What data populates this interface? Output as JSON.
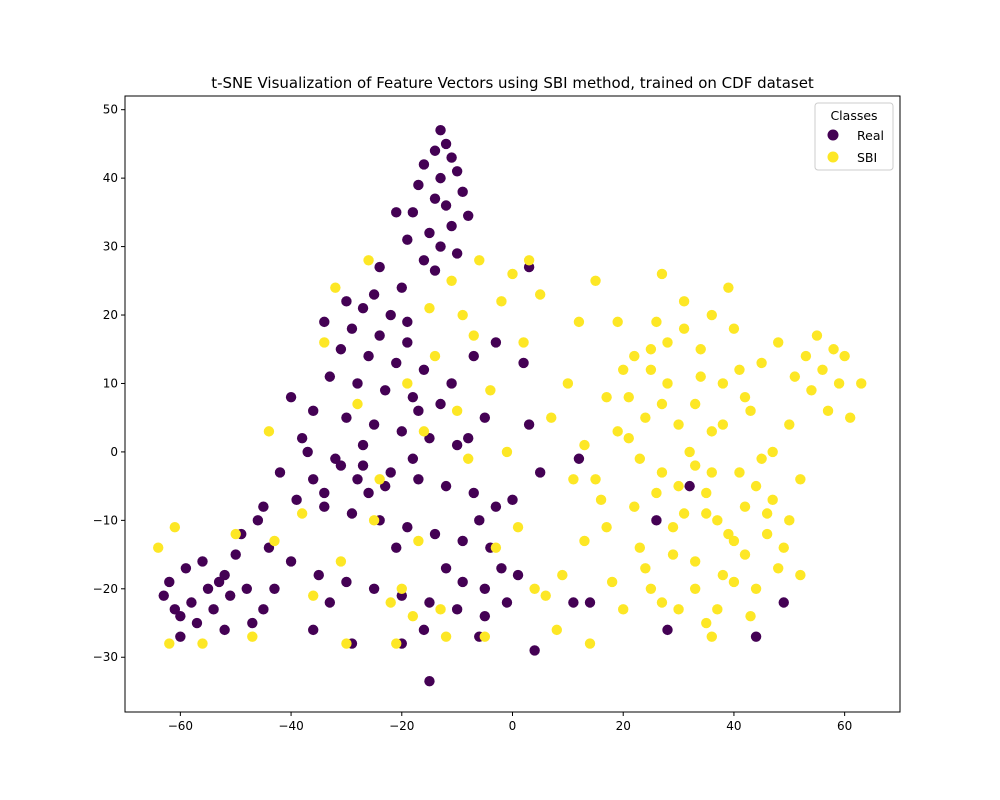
{
  "chart_data": {
    "type": "scatter",
    "title": "t-SNE Visualization of Feature Vectors using SBI method, trained on CDF dataset",
    "xlabel": "",
    "ylabel": "",
    "xlim": [
      -70,
      70
    ],
    "ylim": [
      -38,
      52
    ],
    "xticks": [
      -60,
      -40,
      -20,
      0,
      20,
      40,
      60
    ],
    "yticks": [
      -30,
      -20,
      -10,
      0,
      10,
      20,
      30,
      40,
      50
    ],
    "grid": false,
    "legend": {
      "title": "Classes",
      "placement": "top-right"
    },
    "series": [
      {
        "name": "Real",
        "color": "#440154",
        "points": [
          [
            -15,
            -33.5
          ],
          [
            -13,
            47
          ],
          [
            -12,
            45
          ],
          [
            -14,
            44
          ],
          [
            -11,
            43
          ],
          [
            -16,
            42
          ],
          [
            -10,
            41
          ],
          [
            -13,
            40
          ],
          [
            -17,
            39
          ],
          [
            -9,
            38
          ],
          [
            -14,
            37
          ],
          [
            -12,
            36
          ],
          [
            -18,
            35
          ],
          [
            -8,
            34.5
          ],
          [
            -11,
            33
          ],
          [
            -15,
            32
          ],
          [
            -19,
            31
          ],
          [
            -13,
            30
          ],
          [
            -10,
            29
          ],
          [
            -16,
            28
          ],
          [
            -21,
            35
          ],
          [
            -14,
            26.5
          ],
          [
            -20,
            24
          ],
          [
            -25,
            23
          ],
          [
            -30,
            22
          ],
          [
            -27,
            21
          ],
          [
            -22,
            20
          ],
          [
            -34,
            19
          ],
          [
            -29,
            18
          ],
          [
            -24,
            17
          ],
          [
            -19,
            16
          ],
          [
            -31,
            15
          ],
          [
            -26,
            14
          ],
          [
            -21,
            13
          ],
          [
            -16,
            12
          ],
          [
            -33,
            11
          ],
          [
            -28,
            10
          ],
          [
            -23,
            9
          ],
          [
            -18,
            8
          ],
          [
            -13,
            7
          ],
          [
            -36,
            6
          ],
          [
            -30,
            5
          ],
          [
            -25,
            4
          ],
          [
            -20,
            3
          ],
          [
            -15,
            2
          ],
          [
            -10,
            1
          ],
          [
            -37,
            0
          ],
          [
            -32,
            -1
          ],
          [
            -27,
            -2
          ],
          [
            -22,
            -3
          ],
          [
            -17,
            -4
          ],
          [
            -12,
            -5
          ],
          [
            -7,
            -6
          ],
          [
            -42,
            -3
          ],
          [
            -39,
            -7
          ],
          [
            -34,
            -8
          ],
          [
            -29,
            -9
          ],
          [
            -24,
            -10
          ],
          [
            -19,
            -11
          ],
          [
            -14,
            -12
          ],
          [
            -9,
            -13
          ],
          [
            -4,
            -14
          ],
          [
            -46,
            -10
          ],
          [
            -44,
            -14
          ],
          [
            -40,
            -16
          ],
          [
            -35,
            -18
          ],
          [
            -30,
            -19
          ],
          [
            -25,
            -20
          ],
          [
            -20,
            -21
          ],
          [
            -15,
            -22
          ],
          [
            -10,
            -23
          ],
          [
            -5,
            -24
          ],
          [
            -50,
            -15
          ],
          [
            -52,
            -18
          ],
          [
            -55,
            -20
          ],
          [
            -58,
            -22
          ],
          [
            -60,
            -24
          ],
          [
            -62,
            -19
          ],
          [
            -63,
            -21
          ],
          [
            -59,
            -17
          ],
          [
            -56,
            -16
          ],
          [
            -53,
            -19
          ],
          [
            -61,
            -23
          ],
          [
            -57,
            -25
          ],
          [
            -54,
            -23
          ],
          [
            -51,
            -21
          ],
          [
            -48,
            -20
          ],
          [
            -45,
            -23
          ],
          [
            -47,
            -25
          ],
          [
            -60,
            -27
          ],
          [
            -52,
            -26
          ],
          [
            -40,
            8
          ],
          [
            -38,
            2
          ],
          [
            -36,
            -4
          ],
          [
            -34,
            -6
          ],
          [
            -26,
            -6
          ],
          [
            -23,
            -5
          ],
          [
            -28,
            -4
          ],
          [
            -31,
            -2
          ],
          [
            -18,
            -1
          ],
          [
            -8,
            2
          ],
          [
            -5,
            5
          ],
          [
            -3,
            -8
          ],
          [
            0,
            -7
          ],
          [
            2,
            13
          ],
          [
            3,
            4
          ],
          [
            5,
            -3
          ],
          [
            11,
            -22
          ],
          [
            12,
            -1
          ],
          [
            3,
            27
          ],
          [
            -3,
            16
          ],
          [
            -2,
            -17
          ],
          [
            1,
            -18
          ],
          [
            14,
            -22
          ],
          [
            -6,
            -10
          ],
          [
            32,
            -5
          ],
          [
            26,
            -10
          ],
          [
            28,
            -26
          ],
          [
            44,
            -27
          ],
          [
            49,
            -22
          ],
          [
            -17,
            6
          ],
          [
            -11,
            10
          ],
          [
            -7,
            14
          ],
          [
            -12,
            -17
          ],
          [
            -16,
            -26
          ],
          [
            -6,
            -27
          ],
          [
            -20,
            -28
          ],
          [
            -29,
            -28
          ],
          [
            -33,
            -22
          ],
          [
            -36,
            -26
          ],
          [
            -43,
            -20
          ],
          [
            -45,
            -8
          ],
          [
            -49,
            -12
          ],
          [
            -24,
            27
          ],
          [
            -19,
            19
          ],
          [
            -27,
            1
          ],
          [
            -21,
            -14
          ],
          [
            -9,
            -19
          ],
          [
            -5,
            -20
          ],
          [
            -1,
            -22
          ],
          [
            4,
            -29
          ]
        ]
      },
      {
        "name": "SBI",
        "color": "#fde725",
        "points": [
          [
            -64,
            -14
          ],
          [
            -61,
            -11
          ],
          [
            -62,
            -28
          ],
          [
            -56,
            -28
          ],
          [
            -47,
            -27
          ],
          [
            -50,
            -12
          ],
          [
            -43,
            -13
          ],
          [
            -44,
            3
          ],
          [
            -38,
            -9
          ],
          [
            -36,
            -21
          ],
          [
            -34,
            16
          ],
          [
            -32,
            24
          ],
          [
            -31,
            -16
          ],
          [
            -30,
            -28
          ],
          [
            -28,
            7
          ],
          [
            -26,
            28
          ],
          [
            -25,
            -10
          ],
          [
            -24,
            -4
          ],
          [
            -22,
            -22
          ],
          [
            -21,
            -28
          ],
          [
            -20,
            -20
          ],
          [
            -19,
            10
          ],
          [
            -18,
            -24
          ],
          [
            -17,
            -13
          ],
          [
            -16,
            3
          ],
          [
            -15,
            21
          ],
          [
            -14,
            14
          ],
          [
            -13,
            -23
          ],
          [
            -12,
            -27
          ],
          [
            -11,
            25
          ],
          [
            -10,
            6
          ],
          [
            -9,
            20
          ],
          [
            -8,
            -1
          ],
          [
            -7,
            17
          ],
          [
            -6,
            28
          ],
          [
            -5,
            -27
          ],
          [
            -4,
            9
          ],
          [
            -3,
            -14
          ],
          [
            -2,
            22
          ],
          [
            -1,
            0
          ],
          [
            0,
            26
          ],
          [
            1,
            -11
          ],
          [
            2,
            16
          ],
          [
            3,
            28
          ],
          [
            4,
            -20
          ],
          [
            5,
            23
          ],
          [
            6,
            -21
          ],
          [
            7,
            5
          ],
          [
            8,
            -26
          ],
          [
            9,
            -18
          ],
          [
            10,
            10
          ],
          [
            11,
            -4
          ],
          [
            12,
            19
          ],
          [
            13,
            -13
          ],
          [
            14,
            -28
          ],
          [
            15,
            25
          ],
          [
            16,
            -7
          ],
          [
            17,
            8
          ],
          [
            18,
            -19
          ],
          [
            19,
            19
          ],
          [
            20,
            -23
          ],
          [
            21,
            2
          ],
          [
            22,
            14
          ],
          [
            23,
            -14
          ],
          [
            24,
            5
          ],
          [
            25,
            -20
          ],
          [
            26,
            19
          ],
          [
            27,
            -3
          ],
          [
            27,
            26
          ],
          [
            28,
            10
          ],
          [
            29,
            -15
          ],
          [
            30,
            -5
          ],
          [
            31,
            22
          ],
          [
            32,
            0
          ],
          [
            33,
            -20
          ],
          [
            34,
            15
          ],
          [
            35,
            -9
          ],
          [
            36,
            3
          ],
          [
            37,
            -23
          ],
          [
            38,
            10
          ],
          [
            39,
            -12
          ],
          [
            40,
            18
          ],
          [
            41,
            -3
          ],
          [
            42,
            -15
          ],
          [
            43,
            6
          ],
          [
            44,
            -20
          ],
          [
            45,
            13
          ],
          [
            46,
            -9
          ],
          [
            47,
            0
          ],
          [
            48,
            16
          ],
          [
            49,
            -14
          ],
          [
            50,
            4
          ],
          [
            51,
            11
          ],
          [
            52,
            -4
          ],
          [
            53,
            14
          ],
          [
            54,
            9
          ],
          [
            55,
            17
          ],
          [
            56,
            12
          ],
          [
            57,
            6
          ],
          [
            58,
            15
          ],
          [
            59,
            10
          ],
          [
            60,
            14
          ],
          [
            61,
            5
          ],
          [
            63,
            10
          ],
          [
            25,
            12
          ],
          [
            27,
            7
          ],
          [
            30,
            4
          ],
          [
            33,
            -2
          ],
          [
            35,
            -6
          ],
          [
            37,
            -10
          ],
          [
            40,
            -13
          ],
          [
            42,
            -8
          ],
          [
            44,
            -5
          ],
          [
            46,
            -12
          ],
          [
            48,
            -17
          ],
          [
            38,
            -18
          ],
          [
            33,
            -16
          ],
          [
            29,
            -11
          ],
          [
            26,
            -6
          ],
          [
            23,
            -1
          ],
          [
            21,
            8
          ],
          [
            19,
            3
          ],
          [
            17,
            -11
          ],
          [
            15,
            -4
          ],
          [
            13,
            1
          ],
          [
            28,
            16
          ],
          [
            31,
            18
          ],
          [
            34,
            11
          ],
          [
            36,
            20
          ],
          [
            39,
            24
          ],
          [
            42,
            8
          ],
          [
            45,
            -1
          ],
          [
            47,
            -7
          ],
          [
            50,
            -10
          ],
          [
            52,
            -18
          ],
          [
            30,
            -23
          ],
          [
            35,
            -25
          ],
          [
            40,
            -19
          ],
          [
            43,
            -24
          ],
          [
            36,
            -27
          ],
          [
            25,
            15
          ],
          [
            20,
            12
          ],
          [
            22,
            -8
          ],
          [
            24,
            -17
          ],
          [
            27,
            -22
          ],
          [
            31,
            -9
          ],
          [
            33,
            7
          ],
          [
            36,
            -3
          ],
          [
            38,
            4
          ],
          [
            41,
            12
          ]
        ]
      }
    ]
  }
}
